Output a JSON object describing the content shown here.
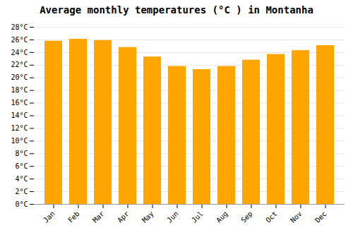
{
  "chart_data": {
    "type": "bar",
    "title": "Average monthly temperatures (°C ) in Montanha",
    "categories": [
      "Jan",
      "Feb",
      "Mar",
      "Apr",
      "May",
      "Jun",
      "Jul",
      "Aug",
      "Sep",
      "Oct",
      "Nov",
      "Dec"
    ],
    "values": [
      25.8,
      26.1,
      25.9,
      24.8,
      23.3,
      21.8,
      21.3,
      21.8,
      22.8,
      23.7,
      24.3,
      25.1
    ],
    "color": "#FFA500",
    "ylim": [
      0,
      28
    ],
    "yticks": [
      {
        "value": 0,
        "label": "0°C"
      },
      {
        "value": 2,
        "label": "2°C"
      },
      {
        "value": 4,
        "label": "4°C"
      },
      {
        "value": 6,
        "label": "6°C"
      },
      {
        "value": 8,
        "label": "8°C"
      },
      {
        "value": 10,
        "label": "10°C"
      },
      {
        "value": 12,
        "label": "12°C"
      },
      {
        "value": 14,
        "label": "14°C"
      },
      {
        "value": 16,
        "label": "16°C"
      },
      {
        "value": 18,
        "label": "18°C"
      },
      {
        "value": 20,
        "label": "20°C"
      },
      {
        "value": 22,
        "label": "22°C"
      },
      {
        "value": 24,
        "label": "24°C"
      },
      {
        "value": 26,
        "label": "26°C"
      },
      {
        "value": 28,
        "label": "28°C"
      }
    ],
    "grid": true
  }
}
